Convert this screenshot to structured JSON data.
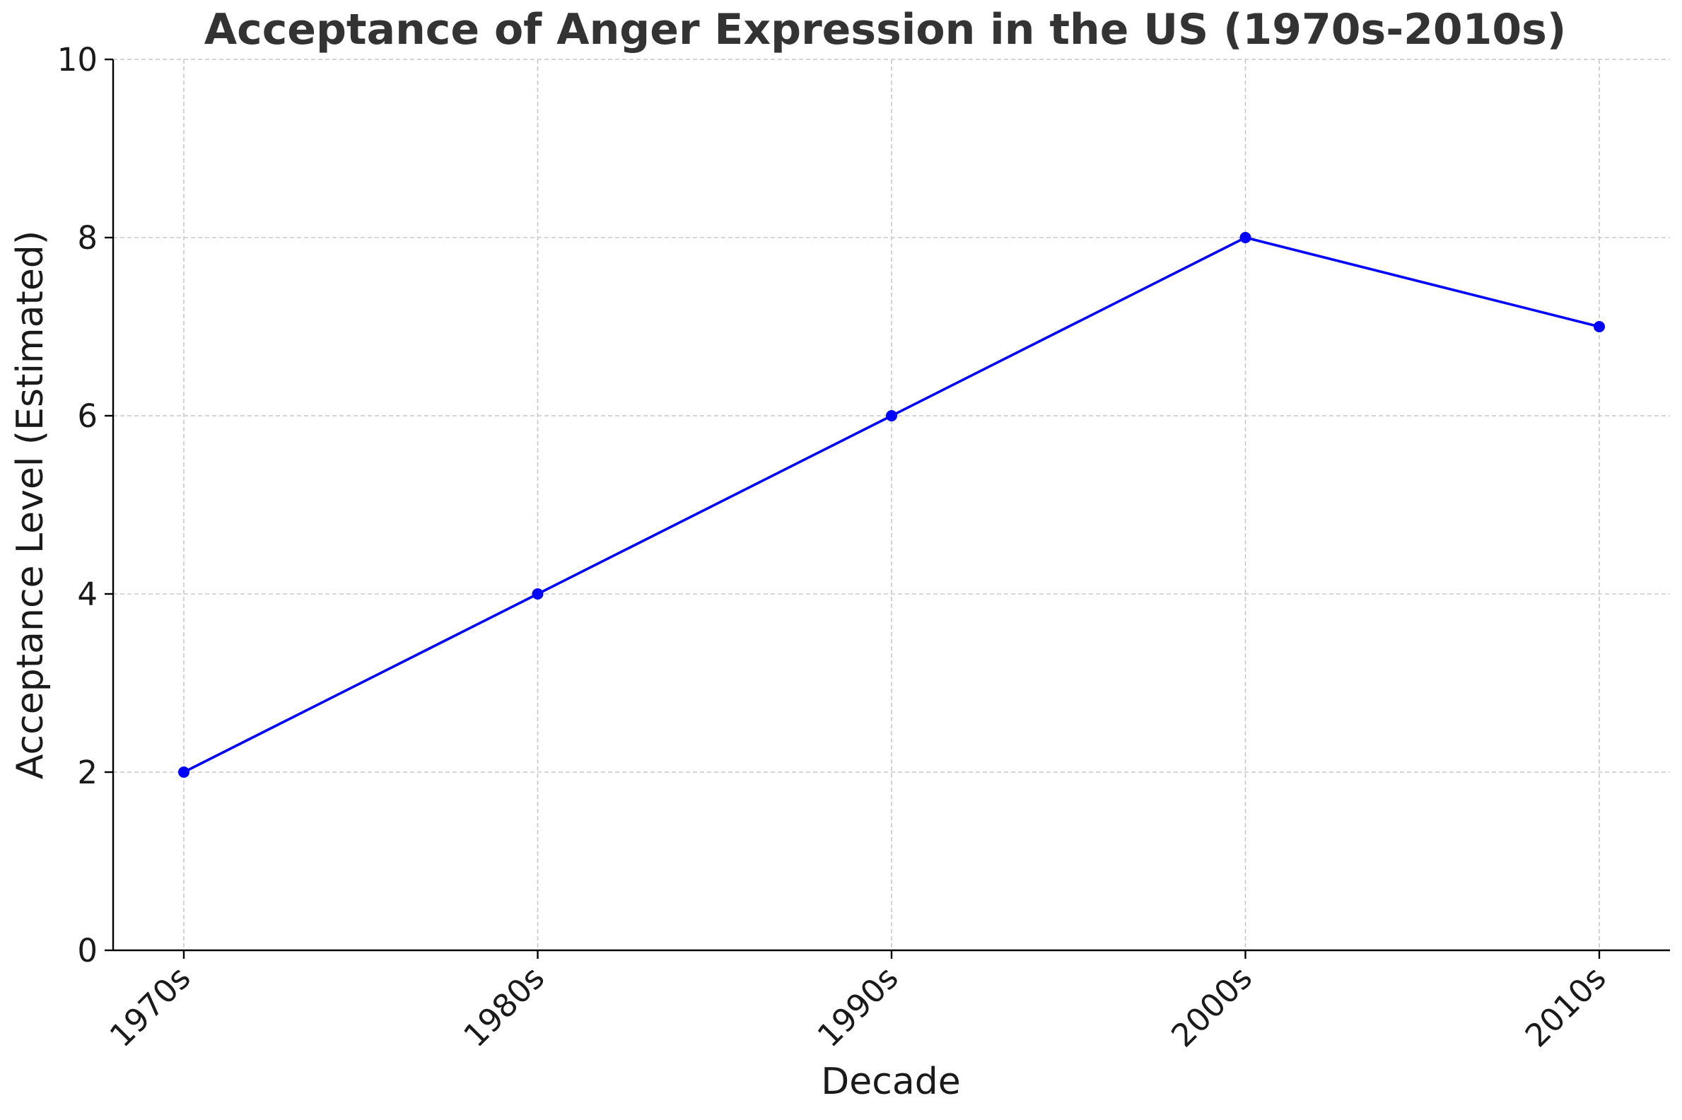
{
  "chart_data": {
    "type": "line",
    "title": "Acceptance of Anger Expression in the US (1970s-2010s)",
    "xlabel": "Decade",
    "ylabel": "Acceptance Level (Estimated)",
    "categories": [
      "1970s",
      "1980s",
      "1990s",
      "2000s",
      "2010s"
    ],
    "series": [
      {
        "values": [
          2,
          4,
          6,
          8,
          7
        ],
        "color": "#0000ff",
        "marker": "circle"
      }
    ],
    "ylim": [
      0,
      10
    ],
    "yticks": [
      0,
      2,
      4,
      6,
      8,
      10
    ],
    "grid": true,
    "xtick_rotation": 45
  }
}
